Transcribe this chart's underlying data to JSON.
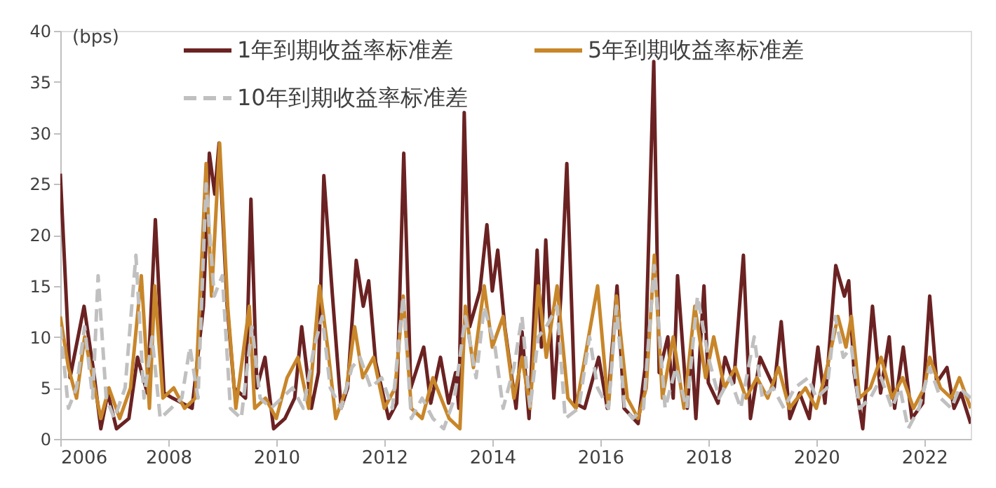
{
  "chart_data": {
    "type": "line",
    "ylabel": "(bps)",
    "xlim": [
      2006,
      2022.86
    ],
    "xticks": [
      2006,
      2008,
      2010,
      2012,
      2014,
      2016,
      2018,
      2020,
      2022
    ],
    "ylim": [
      0,
      40
    ],
    "yticks": [
      0,
      5,
      10,
      15,
      20,
      25,
      30,
      35,
      40
    ],
    "legend": "top",
    "series": [
      {
        "name": "1年到期收益率标准差",
        "color": "#6b2222",
        "line_style": "solid",
        "x": [
          2006.0,
          2006.18,
          2006.44,
          2006.62,
          2006.75,
          2006.88,
          2007.04,
          2007.27,
          2007.43,
          2007.61,
          2007.76,
          2007.92,
          2008.08,
          2008.44,
          2008.65,
          2008.76,
          2008.86,
          2008.94,
          2009.09,
          2009.22,
          2009.43,
          2009.53,
          2009.64,
          2009.79,
          2009.95,
          2010.16,
          2010.34,
          2010.47,
          2010.65,
          2010.78,
          2010.88,
          2011.04,
          2011.2,
          2011.32,
          2011.48,
          2011.61,
          2011.71,
          2011.84,
          2012.08,
          2012.23,
          2012.36,
          2012.49,
          2012.73,
          2012.86,
          2013.04,
          2013.19,
          2013.32,
          2013.38,
          2013.48,
          2013.58,
          2013.77,
          2013.9,
          2014.0,
          2014.1,
          2014.23,
          2014.44,
          2014.55,
          2014.68,
          2014.83,
          2014.91,
          2014.99,
          2015.14,
          2015.27,
          2015.38,
          2015.53,
          2015.71,
          2015.97,
          2016.13,
          2016.31,
          2016.44,
          2016.7,
          2016.83,
          2016.99,
          2017.09,
          2017.25,
          2017.35,
          2017.43,
          2017.61,
          2017.69,
          2017.77,
          2017.92,
          2018.0,
          2018.18,
          2018.31,
          2018.47,
          2018.65,
          2018.78,
          2018.96,
          2019.22,
          2019.35,
          2019.51,
          2019.69,
          2019.87,
          2020.03,
          2020.16,
          2020.36,
          2020.52,
          2020.6,
          2020.7,
          2020.86,
          2021.04,
          2021.19,
          2021.35,
          2021.45,
          2021.61,
          2021.77,
          2021.97,
          2022.1,
          2022.23,
          2022.42,
          2022.55,
          2022.68,
          2022.86
        ],
        "values": [
          26,
          6,
          13,
          6.5,
          1,
          4.5,
          1,
          2,
          8,
          4.5,
          21.5,
          4.5,
          4,
          3,
          13,
          28,
          24,
          29,
          13,
          5,
          4,
          23.5,
          5,
          8,
          1,
          2,
          4,
          11,
          3,
          6.5,
          25.8,
          14,
          3,
          5,
          17.5,
          13,
          15.5,
          7.5,
          2,
          3.5,
          28,
          5,
          9,
          3.5,
          8,
          3.5,
          6.5,
          3,
          32,
          11,
          14.5,
          21,
          14.5,
          18.5,
          11,
          3,
          10.5,
          2,
          18.5,
          9,
          19.5,
          4,
          14,
          27,
          3.5,
          3,
          8,
          3,
          15,
          3,
          1.5,
          7,
          37,
          6.5,
          10,
          4,
          16,
          3,
          9,
          2,
          15,
          5.5,
          3.5,
          8,
          5.5,
          18,
          2,
          8,
          5,
          11.5,
          2,
          4.5,
          2,
          9,
          3.5,
          17,
          14,
          15.5,
          6.5,
          1,
          13,
          4.5,
          10,
          3,
          9,
          2,
          3.5,
          14,
          5.5,
          7,
          3,
          4.5,
          1.5
        ]
      },
      {
        "name": "5年到期收益率标准差",
        "color": "#c8862a",
        "line_style": "solid",
        "x": [
          2006.0,
          2006.15,
          2006.3,
          2006.45,
          2006.6,
          2006.75,
          2006.9,
          2007.1,
          2007.3,
          2007.5,
          2007.65,
          2007.75,
          2007.9,
          2008.1,
          2008.3,
          2008.5,
          2008.7,
          2008.8,
          2008.95,
          2009.1,
          2009.25,
          2009.5,
          2009.6,
          2009.8,
          2010.0,
          2010.2,
          2010.4,
          2010.6,
          2010.8,
          2010.95,
          2011.1,
          2011.3,
          2011.45,
          2011.6,
          2011.8,
          2012.0,
          2012.2,
          2012.35,
          2012.5,
          2012.7,
          2012.9,
          2013.2,
          2013.4,
          2013.5,
          2013.65,
          2013.85,
          2014.0,
          2014.2,
          2014.4,
          2014.55,
          2014.7,
          2014.85,
          2015.0,
          2015.2,
          2015.4,
          2015.55,
          2015.75,
          2015.95,
          2016.15,
          2016.3,
          2016.5,
          2016.7,
          2016.85,
          2017.0,
          2017.15,
          2017.35,
          2017.55,
          2017.75,
          2017.95,
          2018.1,
          2018.3,
          2018.5,
          2018.7,
          2018.9,
          2019.1,
          2019.3,
          2019.5,
          2019.8,
          2020.0,
          2020.2,
          2020.4,
          2020.55,
          2020.65,
          2020.8,
          2021.0,
          2021.2,
          2021.4,
          2021.6,
          2021.8,
          2022.0,
          2022.1,
          2022.3,
          2022.5,
          2022.65,
          2022.86
        ],
        "values": [
          12,
          7,
          4,
          10,
          6,
          2,
          5,
          2,
          5,
          16,
          3,
          15,
          4,
          5,
          3,
          4,
          27,
          14,
          29,
          13,
          3,
          13,
          3,
          4,
          2,
          6,
          8,
          3,
          15,
          9,
          2,
          5,
          11,
          6,
          8,
          3,
          5,
          14,
          3,
          2,
          6,
          2,
          1,
          13,
          7,
          15,
          9,
          12,
          4,
          8,
          3,
          15,
          8,
          15,
          4,
          3,
          9,
          15,
          3,
          14,
          4,
          2,
          5,
          18,
          4,
          10,
          3,
          13,
          6,
          10,
          5,
          7,
          4,
          6,
          4,
          7,
          3,
          5,
          3,
          7,
          12,
          9,
          12,
          4,
          5,
          8,
          4,
          6,
          3,
          5,
          8,
          5,
          4,
          6,
          3
        ]
      },
      {
        "name": "10年到期收益率标准差",
        "color": "#c0c0c0",
        "line_style": "dashed",
        "x": [
          2006.0,
          2006.15,
          2006.3,
          2006.45,
          2006.6,
          2006.7,
          2006.85,
          2007.0,
          2007.2,
          2007.4,
          2007.55,
          2007.7,
          2007.85,
          2008.05,
          2008.25,
          2008.4,
          2008.55,
          2008.7,
          2008.85,
          2009.0,
          2009.15,
          2009.35,
          2009.55,
          2009.7,
          2009.9,
          2010.1,
          2010.3,
          2010.5,
          2010.7,
          2010.85,
          2011.0,
          2011.2,
          2011.4,
          2011.55,
          2011.75,
          2011.95,
          2012.15,
          2012.35,
          2012.5,
          2012.7,
          2012.9,
          2013.1,
          2013.3,
          2013.5,
          2013.7,
          2013.85,
          2014.05,
          2014.2,
          2014.4,
          2014.55,
          2014.7,
          2014.85,
          2015.0,
          2015.2,
          2015.35,
          2015.6,
          2015.8,
          2015.95,
          2016.15,
          2016.3,
          2016.45,
          2016.6,
          2016.8,
          2017.0,
          2017.2,
          2017.4,
          2017.6,
          2017.8,
          2018.0,
          2018.2,
          2018.4,
          2018.6,
          2018.85,
          2019.0,
          2019.2,
          2019.4,
          2019.6,
          2019.85,
          2020.0,
          2020.2,
          2020.35,
          2020.5,
          2020.65,
          2020.8,
          2021.0,
          2021.2,
          2021.4,
          2021.55,
          2021.7,
          2021.9,
          2022.1,
          2022.3,
          2022.5,
          2022.65,
          2022.86
        ],
        "values": [
          11,
          3,
          5,
          11,
          4,
          16,
          4,
          2,
          5,
          18,
          4,
          10,
          2,
          3,
          4,
          9,
          4,
          25,
          14,
          16,
          3,
          2,
          11,
          4,
          3,
          4,
          5,
          3,
          9,
          12,
          5,
          3,
          7,
          8,
          5,
          6,
          3,
          14,
          2,
          4,
          2,
          1,
          4,
          12,
          6,
          13,
          9,
          3,
          7,
          12,
          3,
          10,
          11,
          13,
          2,
          3,
          10,
          5,
          3,
          13,
          3,
          2,
          3,
          17,
          3,
          7,
          3,
          14,
          8,
          4,
          6,
          3,
          10,
          4,
          5,
          3,
          5,
          6,
          4,
          5,
          12,
          8,
          9,
          3,
          4,
          6,
          3,
          5,
          1,
          3,
          7,
          4,
          3,
          5,
          4
        ]
      }
    ]
  }
}
